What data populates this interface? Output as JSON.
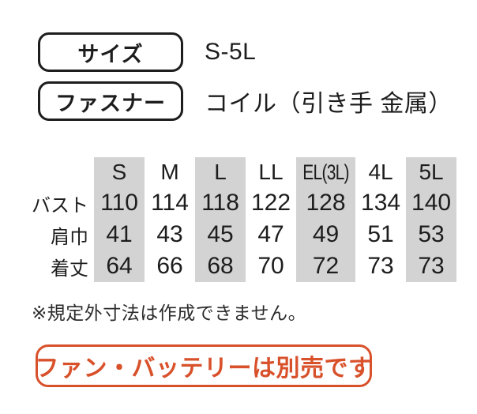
{
  "specs": [
    {
      "label": "サイズ",
      "value": "S-5L"
    },
    {
      "label": "ファスナー",
      "value": "コイル（引き手 金属）"
    }
  ],
  "table": {
    "columns": [
      "S",
      "M",
      "L",
      "LL",
      "EL(3L)",
      "4L",
      "5L"
    ],
    "rows": [
      {
        "label": "バスト",
        "values": [
          "110",
          "114",
          "118",
          "122",
          "128",
          "134",
          "140"
        ]
      },
      {
        "label": "肩巾",
        "values": [
          "41",
          "43",
          "45",
          "47",
          "49",
          "51",
          "53"
        ]
      },
      {
        "label": "着丈",
        "values": [
          "64",
          "66",
          "68",
          "70",
          "72",
          "73",
          "73"
        ]
      }
    ],
    "shaded_columns": [
      "S",
      "L",
      "EL(3L)",
      "5L"
    ]
  },
  "note": "※規定外寸法は作成できません。",
  "callout": "ファン・バッテリーは別売です",
  "colors": {
    "accent_orange": "#d8512b",
    "shaded_column_gray": "#d3d3d3",
    "text_black": "#1d1d1d"
  }
}
